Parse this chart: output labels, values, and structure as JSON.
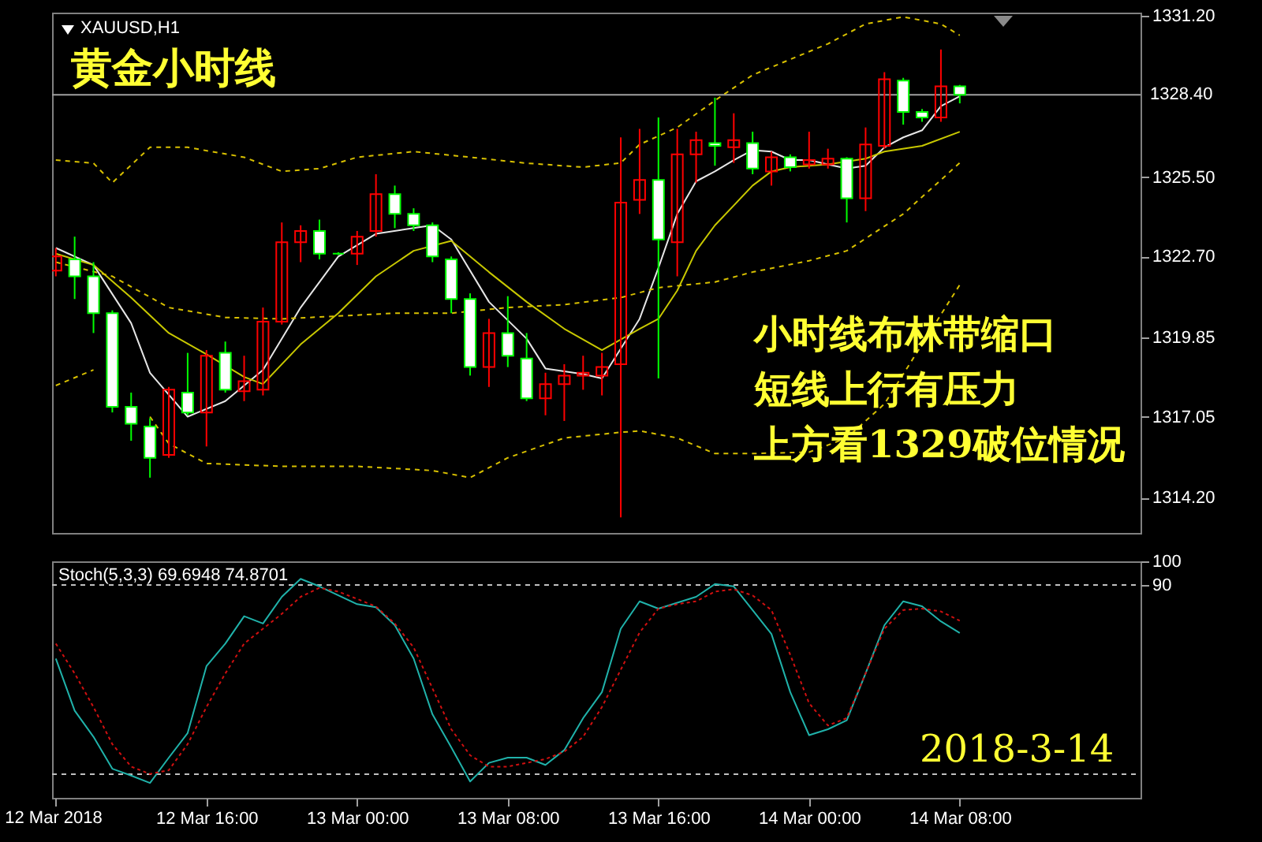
{
  "chart_data": [
    {
      "type": "candlestick",
      "title": "XAUUSD,H1",
      "subtitle": "黄金小时线",
      "tick_labels": "y",
      "x": [
        "2018-03-12T08:00",
        "2018-03-12T09:00",
        "2018-03-12T10:00",
        "2018-03-12T11:00",
        "2018-03-12T12:00",
        "2018-03-12T13:00",
        "2018-03-12T14:00",
        "2018-03-12T15:00",
        "2018-03-12T16:00",
        "2018-03-12T17:00",
        "2018-03-12T18:00",
        "2018-03-12T19:00",
        "2018-03-12T20:00",
        "2018-03-12T21:00",
        "2018-03-12T22:00",
        "2018-03-12T23:00",
        "2018-03-13T00:00",
        "2018-03-13T01:00",
        "2018-03-13T02:00",
        "2018-03-13T03:00",
        "2018-03-13T04:00",
        "2018-03-13T05:00",
        "2018-03-13T06:00",
        "2018-03-13T07:00",
        "2018-03-13T08:00",
        "2018-03-13T09:00",
        "2018-03-13T10:00",
        "2018-03-13T11:00",
        "2018-03-13T12:00",
        "2018-03-13T13:00",
        "2018-03-13T14:00",
        "2018-03-13T15:00",
        "2018-03-13T16:00",
        "2018-03-13T17:00",
        "2018-03-13T18:00",
        "2018-03-13T19:00",
        "2018-03-13T20:00",
        "2018-03-13T21:00",
        "2018-03-13T22:00",
        "2018-03-13T23:00",
        "2018-03-14T00:00",
        "2018-03-14T01:00",
        "2018-03-14T02:00",
        "2018-03-14T03:00",
        "2018-03-14T04:00",
        "2018-03-14T05:00",
        "2018-03-14T06:00",
        "2018-03-14T07:00",
        "2018-03-14T08:00"
      ],
      "ohlc": [
        [
          1322.2,
          1323.0,
          1322.0,
          1322.7
        ],
        [
          1322.6,
          1323.4,
          1321.2,
          1322.0
        ],
        [
          1322.0,
          1322.5,
          1320.0,
          1320.7
        ],
        [
          1320.7,
          1320.8,
          1317.2,
          1317.4
        ],
        [
          1317.4,
          1317.9,
          1316.2,
          1316.8
        ],
        [
          1316.7,
          1317.0,
          1314.9,
          1315.6
        ],
        [
          1315.7,
          1318.1,
          1315.6,
          1318.0
        ],
        [
          1317.9,
          1319.3,
          1317.1,
          1317.2
        ],
        [
          1317.2,
          1319.4,
          1316.0,
          1319.2
        ],
        [
          1319.3,
          1319.7,
          1317.9,
          1318.0
        ],
        [
          1317.95,
          1319.2,
          1317.6,
          1318.3
        ],
        [
          1318.0,
          1320.9,
          1317.8,
          1320.4
        ],
        [
          1320.4,
          1323.9,
          1320.3,
          1323.2
        ],
        [
          1323.2,
          1323.8,
          1322.5,
          1323.6
        ],
        [
          1323.6,
          1324.0,
          1322.6,
          1322.8
        ],
        [
          1322.8,
          1322.85,
          1322.75,
          1322.8
        ],
        [
          1322.8,
          1323.6,
          1322.4,
          1323.4
        ],
        [
          1323.6,
          1325.6,
          1323.4,
          1324.9
        ],
        [
          1324.9,
          1325.2,
          1323.7,
          1324.2
        ],
        [
          1324.2,
          1324.4,
          1323.6,
          1323.8
        ],
        [
          1323.8,
          1323.9,
          1322.5,
          1322.7
        ],
        [
          1322.6,
          1322.7,
          1320.7,
          1321.2
        ],
        [
          1321.2,
          1321.4,
          1318.5,
          1318.8
        ],
        [
          1318.8,
          1320.5,
          1318.1,
          1320.0
        ],
        [
          1320.0,
          1321.3,
          1318.8,
          1319.2
        ],
        [
          1319.1,
          1320.0,
          1317.6,
          1317.7
        ],
        [
          1317.7,
          1318.6,
          1317.1,
          1318.2
        ],
        [
          1318.2,
          1318.9,
          1316.9,
          1318.5
        ],
        [
          1318.5,
          1319.2,
          1318.0,
          1318.6
        ],
        [
          1318.5,
          1319.3,
          1317.8,
          1318.8
        ],
        [
          1318.9,
          1326.9,
          1313.5,
          1324.6
        ],
        [
          1324.7,
          1327.2,
          1324.2,
          1325.4
        ],
        [
          1325.4,
          1327.6,
          1318.4,
          1323.3
        ],
        [
          1323.2,
          1327.2,
          1322.0,
          1326.3
        ],
        [
          1326.3,
          1327.1,
          1325.3,
          1326.8
        ],
        [
          1326.7,
          1328.3,
          1325.9,
          1326.6
        ],
        [
          1326.55,
          1327.75,
          1326.0,
          1326.8
        ],
        [
          1326.7,
          1327.1,
          1325.6,
          1325.8
        ],
        [
          1325.7,
          1326.4,
          1325.2,
          1326.2
        ],
        [
          1326.2,
          1326.3,
          1325.7,
          1325.85
        ],
        [
          1325.95,
          1327.1,
          1325.8,
          1326.1
        ],
        [
          1325.95,
          1326.5,
          1325.8,
          1326.15
        ],
        [
          1326.15,
          1326.2,
          1323.9,
          1324.75
        ],
        [
          1324.75,
          1327.25,
          1324.3,
          1326.65
        ],
        [
          1326.6,
          1329.2,
          1326.5,
          1328.95
        ],
        [
          1328.9,
          1329.0,
          1327.35,
          1327.8
        ],
        [
          1327.8,
          1327.9,
          1327.45,
          1327.6
        ],
        [
          1327.6,
          1330.0,
          1327.45,
          1328.7
        ],
        [
          1328.7,
          1328.75,
          1328.1,
          1328.4
        ]
      ],
      "colors": [
        "#ff0000",
        "#00ff00",
        "#00ff00",
        "#00ff00",
        "#00ff00",
        "#00ff00",
        "#ff0000",
        "#00ff00",
        "#ff0000",
        "#00ff00",
        "#ff0000",
        "#ff0000",
        "#ff0000",
        "#ff0000",
        "#00ff00",
        "#00ff00",
        "#ff0000",
        "#ff0000",
        "#00ff00",
        "#00ff00",
        "#00ff00",
        "#00ff00",
        "#00ff00",
        "#ff0000",
        "#00ff00",
        "#00ff00",
        "#ff0000",
        "#ff0000",
        "#ff0000",
        "#ff0000",
        "#ff0000",
        "#ff0000",
        "#00ff00",
        "#ff0000",
        "#ff0000",
        "#00ff00",
        "#ff0000",
        "#00ff00",
        "#ff0000",
        "#00ff00",
        "#ff0000",
        "#ff0000",
        "#00ff00",
        "#ff0000",
        "#ff0000",
        "#00ff00",
        "#00ff00",
        "#ff0000",
        "#00ff00"
      ],
      "series": [
        {
          "type": "line",
          "color": "#e6e6e6",
          "x": [
            "2018-03-12T08:00",
            "2018-03-12T10:00",
            "2018-03-12T12:00",
            "2018-03-12T13:00",
            "2018-03-12T15:00",
            "2018-03-12T17:00",
            "2018-03-12T19:00",
            "2018-03-12T21:00",
            "2018-03-12T23:00",
            "2018-03-13T01:00",
            "2018-03-13T03:00",
            "2018-03-13T04:00",
            "2018-03-13T05:00",
            "2018-03-13T07:00",
            "2018-03-13T09:00",
            "2018-03-13T10:00",
            "2018-03-13T12:00",
            "2018-03-13T13:00",
            "2018-03-13T15:00",
            "2018-03-13T16:00",
            "2018-03-13T17:00",
            "2018-03-13T18:00",
            "2018-03-13T19:00",
            "2018-03-13T20:00",
            "2018-03-13T21:00",
            "2018-03-13T22:00",
            "2018-03-13T23:00",
            "2018-03-14T00:00",
            "2018-03-14T01:00",
            "2018-03-14T02:00",
            "2018-03-14T03:00",
            "2018-03-14T04:00",
            "2018-03-14T05:00",
            "2018-03-14T06:00",
            "2018-03-14T07:00",
            "2018-03-14T08:00"
          ],
          "values": [
            1323.0,
            1322.4,
            1320.35,
            1318.6,
            1317.05,
            1317.6,
            1318.7,
            1320.9,
            1322.7,
            1323.5,
            1323.7,
            1323.8,
            1323.3,
            1321.1,
            1319.8,
            1318.75,
            1318.55,
            1318.4,
            1320.5,
            1322.3,
            1324.2,
            1325.35,
            1325.7,
            1326.1,
            1326.45,
            1326.4,
            1326.1,
            1326.1,
            1325.95,
            1325.8,
            1325.9,
            1326.55,
            1326.9,
            1327.15,
            1328.0,
            1328.35
          ]
        },
        {
          "type": "line",
          "color": "#c8c800",
          "x": [
            "2018-03-12T08:00",
            "2018-03-12T10:00",
            "2018-03-12T12:00",
            "2018-03-12T14:00",
            "2018-03-12T16:00",
            "2018-03-12T18:00",
            "2018-03-12T19:00",
            "2018-03-12T21:00",
            "2018-03-12T23:00",
            "2018-03-13T01:00",
            "2018-03-13T03:00",
            "2018-03-13T05:00",
            "2018-03-13T07:00",
            "2018-03-13T09:00",
            "2018-03-13T11:00",
            "2018-03-13T13:00",
            "2018-03-13T15:00",
            "2018-03-13T16:00",
            "2018-03-13T17:00",
            "2018-03-13T18:00",
            "2018-03-13T19:00",
            "2018-03-13T20:00",
            "2018-03-13T21:00",
            "2018-03-13T22:00",
            "2018-03-13T23:00",
            "2018-03-14T01:00",
            "2018-03-14T03:00",
            "2018-03-14T04:00",
            "2018-03-14T06:00",
            "2018-03-14T08:00"
          ],
          "values": [
            1322.8,
            1322.4,
            1321.25,
            1320.0,
            1319.25,
            1318.45,
            1318.2,
            1319.6,
            1320.7,
            1322.0,
            1322.9,
            1323.25,
            1322.15,
            1321.1,
            1320.15,
            1319.4,
            1320.15,
            1320.5,
            1321.5,
            1322.9,
            1323.8,
            1324.5,
            1325.2,
            1325.7,
            1325.85,
            1325.95,
            1326.15,
            1326.4,
            1326.6,
            1327.1
          ]
        },
        {
          "type": "line",
          "color": "#d8c000",
          "line_style": "dashed",
          "x": [
            "2018-03-12T08:00",
            "2018-03-12T10:00",
            "2018-03-12T11:00",
            "2018-03-12T13:00",
            "2018-03-12T15:00",
            "2018-03-12T18:00",
            "2018-03-12T20:00",
            "2018-03-12T22:00",
            "2018-03-13T00:00",
            "2018-03-13T03:00",
            "2018-03-13T06:00",
            "2018-03-13T09:00",
            "2018-03-13T12:00",
            "2018-03-13T14:00",
            "2018-03-13T15:00",
            "2018-03-13T17:00",
            "2018-03-13T19:00",
            "2018-03-13T21:00",
            "2018-03-13T23:00",
            "2018-03-14T01:00",
            "2018-03-14T03:00",
            "2018-03-14T05:00",
            "2018-03-14T07:00",
            "2018-03-14T08:00"
          ],
          "values": [
            1326.1,
            1325.99,
            1325.3,
            1326.55,
            1326.55,
            1326.2,
            1325.7,
            1325.8,
            1326.2,
            1326.4,
            1326.2,
            1325.99,
            1325.85,
            1326.0,
            1326.65,
            1327.25,
            1328.2,
            1329.1,
            1329.65,
            1330.2,
            1330.9,
            1331.15,
            1330.9,
            1330.5
          ]
        },
        {
          "type": "line",
          "color": "#d8c000",
          "line_style": "dashed",
          "x": [
            "2018-03-12T08:00",
            "2018-03-12T11:00",
            "2018-03-12T14:00",
            "2018-03-12T17:00",
            "2018-03-12T20:00",
            "2018-03-12T23:00",
            "2018-03-13T02:00",
            "2018-03-13T05:00",
            "2018-03-13T08:00",
            "2018-03-13T11:00",
            "2018-03-13T14:00",
            "2018-03-13T16:00",
            "2018-03-13T19:00",
            "2018-03-13T21:00",
            "2018-03-14T00:00",
            "2018-03-14T02:00",
            "2018-03-14T05:00",
            "2018-03-14T08:00"
          ],
          "values": [
            1322.5,
            1322.0,
            1320.9,
            1320.55,
            1320.5,
            1320.6,
            1320.7,
            1320.7,
            1320.9,
            1321.0,
            1321.25,
            1321.6,
            1321.8,
            1322.15,
            1322.55,
            1322.9,
            1324.2,
            1326.0
          ]
        },
        {
          "type": "line",
          "color": "#d8c000",
          "line_style": "dashed",
          "x": [
            "2018-03-12T08:00",
            "2018-03-12T10:00",
            "2018-03-12T11:00",
            "2018-03-12T13:00",
            "2018-03-12T14:00",
            "2018-03-12T16:00",
            "2018-03-12T20:00",
            "2018-03-13T00:00",
            "2018-03-13T04:00",
            "2018-03-13T06:00",
            "2018-03-13T08:00",
            "2018-03-13T11:00",
            "2018-03-13T14:00",
            "2018-03-13T15:00",
            "2018-03-13T17:00",
            "2018-03-13T19:00",
            "2018-03-13T21:00",
            "2018-03-14T00:00",
            "2018-03-14T02:00",
            "2018-03-14T04:00",
            "2018-03-14T06:00",
            "2018-03-14T08:00"
          ],
          "values": [
            1318.15,
            1318.7,
            null,
            1317.05,
            1316.1,
            1315.4,
            1315.3,
            1315.3,
            1315.15,
            1314.9,
            1315.6,
            1316.3,
            1316.5,
            1316.55,
            1316.3,
            1315.75,
            1315.75,
            1315.8,
            1316.3,
            1317.5,
            1319.6,
            1321.7
          ]
        }
      ],
      "xlim": [
        "2018-03-12T07:48",
        "2018-03-14T17:36"
      ],
      "ylim": [
        1312.95,
        1331.3
      ],
      "yticks": [
        {
          "value": 1331.2,
          "label": "1331.20"
        },
        {
          "value": 1325.5,
          "label": "1325.50"
        },
        {
          "value": 1322.7,
          "label": "1322.70"
        },
        {
          "value": 1319.85,
          "label": "1319.85"
        },
        {
          "value": 1317.05,
          "label": "1317.05"
        },
        {
          "value": 1314.2,
          "label": "1314.20"
        }
      ],
      "ref_lines": [
        {
          "axis": "y",
          "value": 1328.4,
          "label": "1328.40",
          "color": "#a0a0a0"
        }
      ],
      "annotations": [
        "小时线布林带缩口",
        "短线上行有压力",
        "上方看1329破位情况"
      ]
    },
    {
      "type": "line",
      "title": "Stoch(5,3,3) 69.6948 74.8701",
      "x": [
        "2018-03-12T08:00",
        "2018-03-12T09:00",
        "2018-03-12T10:00",
        "2018-03-12T11:00",
        "2018-03-12T12:00",
        "2018-03-12T13:00",
        "2018-03-12T14:00",
        "2018-03-12T15:00",
        "2018-03-12T16:00",
        "2018-03-12T17:00",
        "2018-03-12T18:00",
        "2018-03-12T19:00",
        "2018-03-12T20:00",
        "2018-03-12T21:00",
        "2018-03-12T22:00",
        "2018-03-12T23:00",
        "2018-03-13T00:00",
        "2018-03-13T01:00",
        "2018-03-13T02:00",
        "2018-03-13T03:00",
        "2018-03-13T04:00",
        "2018-03-13T05:00",
        "2018-03-13T06:00",
        "2018-03-13T07:00",
        "2018-03-13T08:00",
        "2018-03-13T09:00",
        "2018-03-13T10:00",
        "2018-03-13T11:00",
        "2018-03-13T12:00",
        "2018-03-13T13:00",
        "2018-03-13T14:00",
        "2018-03-13T15:00",
        "2018-03-13T16:00",
        "2018-03-13T17:00",
        "2018-03-13T18:00",
        "2018-03-13T19:00",
        "2018-03-13T20:00",
        "2018-03-13T21:00",
        "2018-03-13T22:00",
        "2018-03-13T23:00",
        "2018-03-14T00:00",
        "2018-03-14T01:00",
        "2018-03-14T02:00",
        "2018-03-14T03:00",
        "2018-03-14T04:00",
        "2018-03-14T05:00",
        "2018-03-14T06:00",
        "2018-03-14T07:00",
        "2018-03-14T08:00"
      ],
      "series": [
        {
          "color": "#20b2aa",
          "values": [
            58.9,
            36.9,
            25.8,
            12.3,
            9.4,
            6.3,
            17,
            27.4,
            55.7,
            65.2,
            76.8,
            73.7,
            85,
            92.6,
            89.4,
            85.6,
            81.9,
            80.6,
            73,
            58.9,
            35.3,
            21.3,
            6.9,
            14.8,
            17,
            17,
            13.9,
            20.2,
            33.7,
            44.7,
            71.5,
            83.1,
            80,
            82.5,
            85,
            90.4,
            89.4,
            79.4,
            69.3,
            44.7,
            26.5,
            29,
            32.8,
            52.6,
            73,
            83.1,
            81,
            74.6,
            69.7
          ]
        },
        {
          "color": "#d01010",
          "line_style": "dotted",
          "values": [
            65.2,
            52.6,
            38.4,
            22.7,
            13.2,
            10.1,
            11.7,
            22.7,
            38.4,
            52.6,
            65.2,
            71.5,
            77.8,
            85,
            88.8,
            87.2,
            84.1,
            80.9,
            73.7,
            63.6,
            46.3,
            29,
            18,
            13.2,
            13.2,
            14.8,
            16.4,
            19.5,
            25.8,
            38.4,
            54.2,
            69.9,
            80,
            81.9,
            83.1,
            87.2,
            88.2,
            85.6,
            79.4,
            60.5,
            40,
            30.6,
            33.7,
            52.6,
            71.5,
            79.4,
            80,
            78.8,
            74.9
          ]
        }
      ],
      "xlim": [
        "2018-03-12T07:48",
        "2018-03-14T17:36"
      ],
      "ylim": [
        0,
        100
      ],
      "yticks": [
        100,
        90
      ],
      "xticks": [
        {
          "value": "2018-03-12T08:00",
          "label": null
        },
        {
          "value": "2018-03-12T16:00",
          "label": "12 Mar 16:00"
        },
        {
          "value": "2018-03-13T00:00",
          "label": "13 Mar 00:00"
        },
        {
          "value": "2018-03-13T08:00",
          "label": "13 Mar 08:00"
        },
        {
          "value": "2018-03-13T16:00",
          "label": "13 Mar 16:00"
        },
        {
          "value": "2018-03-14T00:00",
          "label": "14 Mar 00:00"
        },
        {
          "value": "2018-03-14T08:00",
          "label": "14 Mar 08:00"
        }
      ],
      "ref_lines": [
        {
          "axis": "y",
          "value": 90,
          "color": "#c0c0c0",
          "line_style": "dashed"
        },
        {
          "axis": "y",
          "value": 10,
          "color": "#c0c0c0",
          "line_style": "dashed"
        }
      ],
      "annotations": [
        "12 Mar 2018",
        "2018-3-14"
      ]
    }
  ]
}
